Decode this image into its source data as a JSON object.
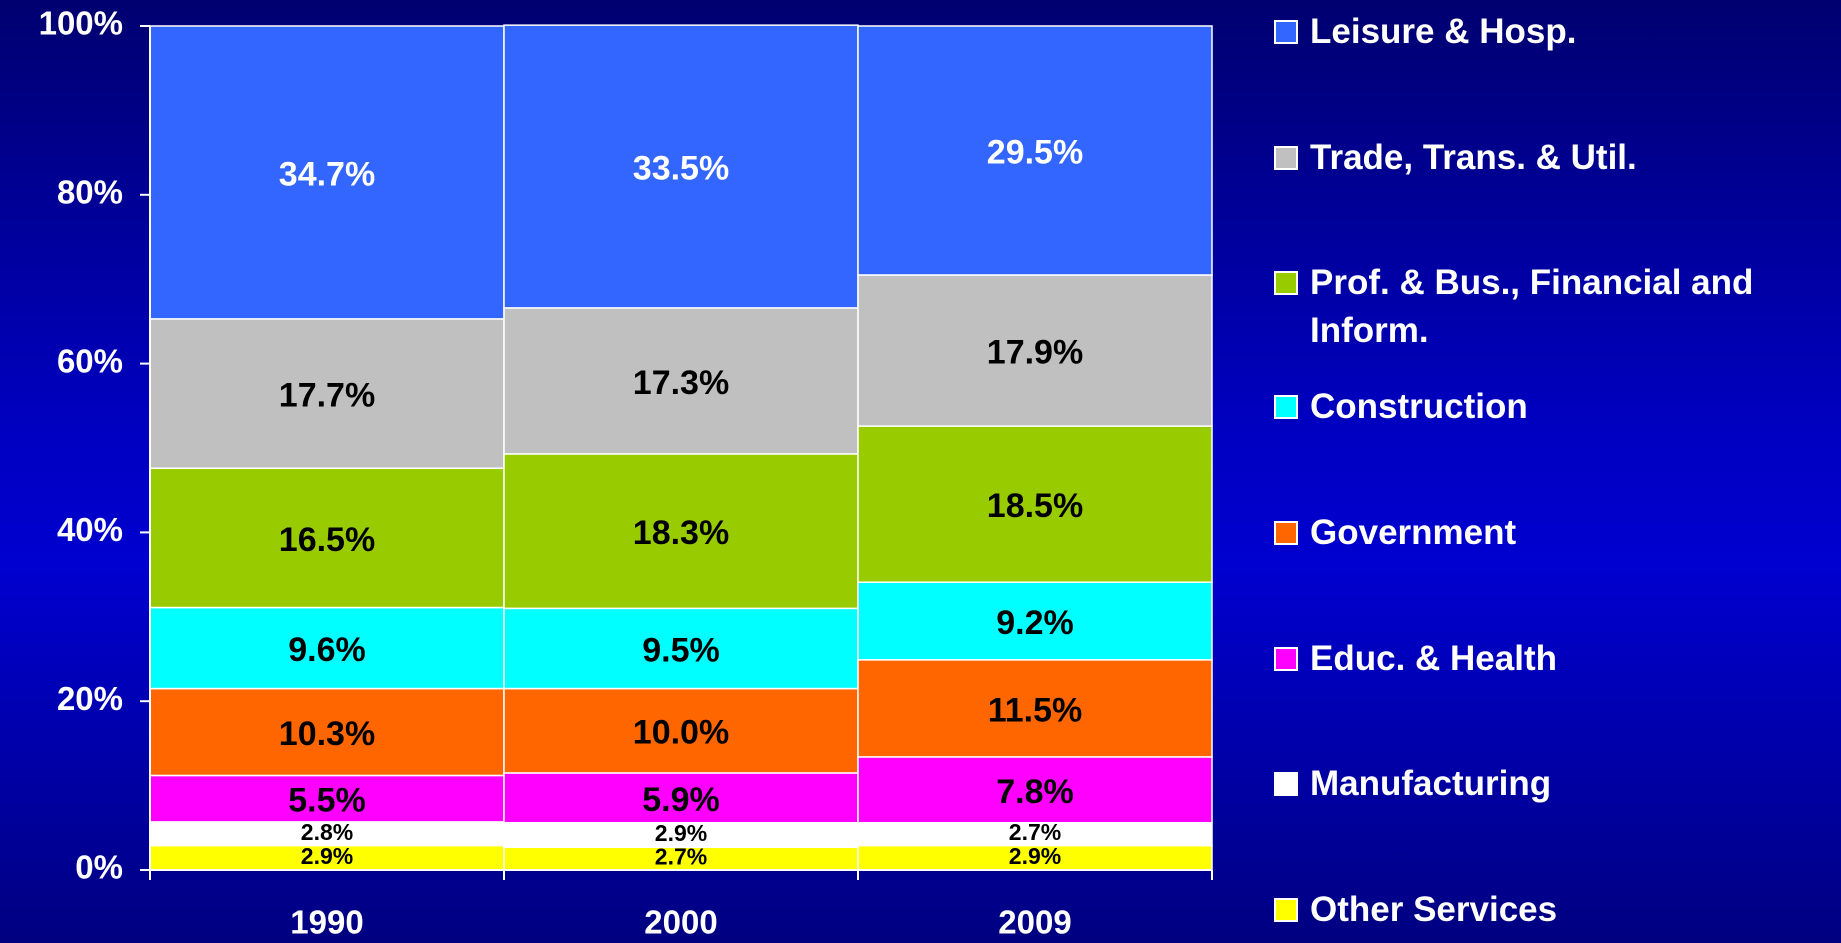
{
  "chart_data": {
    "type": "stacked_bar",
    "categories": [
      "1990",
      "2000",
      "2009"
    ],
    "series": [
      {
        "name": "Other Services",
        "color": "#ffff00",
        "values": [
          2.9,
          2.7,
          2.9
        ],
        "value_labels": [
          "2.9%",
          "2.7%",
          "2.9%"
        ]
      },
      {
        "name": "Manufacturing",
        "color": "#ffffff",
        "values": [
          2.8,
          2.9,
          2.7
        ],
        "value_labels": [
          "2.8%",
          "2.9%",
          "2.7%"
        ]
      },
      {
        "name": "Educ. & Health",
        "color": "#ff00ff",
        "values": [
          5.5,
          5.9,
          7.8
        ],
        "value_labels": [
          "5.5%",
          "5.9%",
          "7.8%"
        ]
      },
      {
        "name": "Government",
        "color": "#ff6600",
        "values": [
          10.3,
          10.0,
          11.5
        ],
        "value_labels": [
          "10.3%",
          "10.0%",
          "11.5%"
        ]
      },
      {
        "name": "Construction",
        "color": "#00ffff",
        "values": [
          9.6,
          9.5,
          9.2
        ],
        "value_labels": [
          "9.6%",
          "9.5%",
          "9.2%"
        ]
      },
      {
        "name": "Prof. & Bus., Financial and Inform.",
        "color": "#99cc00",
        "values": [
          16.5,
          18.3,
          18.5
        ],
        "value_labels": [
          "16.5%",
          "18.3%",
          "18.5%"
        ]
      },
      {
        "name": "Trade, Trans. & Util.",
        "color": "#c0c0c0",
        "values": [
          17.7,
          17.3,
          17.9
        ],
        "value_labels": [
          "17.7%",
          "17.3%",
          "17.9%"
        ]
      },
      {
        "name": "Leisure & Hosp.",
        "color": "#3366ff",
        "values": [
          34.7,
          33.5,
          29.5
        ],
        "value_labels": [
          "34.7%",
          "33.5%",
          "29.5%"
        ]
      }
    ],
    "ylim": [
      0,
      100
    ],
    "yticks": [
      {
        "value": 0,
        "label": "0%"
      },
      {
        "value": 20,
        "label": "20%"
      },
      {
        "value": 40,
        "label": "40%"
      },
      {
        "value": 60,
        "label": "60%"
      },
      {
        "value": 80,
        "label": "80%"
      },
      {
        "value": 100,
        "label": "100%"
      }
    ],
    "legend": "right"
  }
}
